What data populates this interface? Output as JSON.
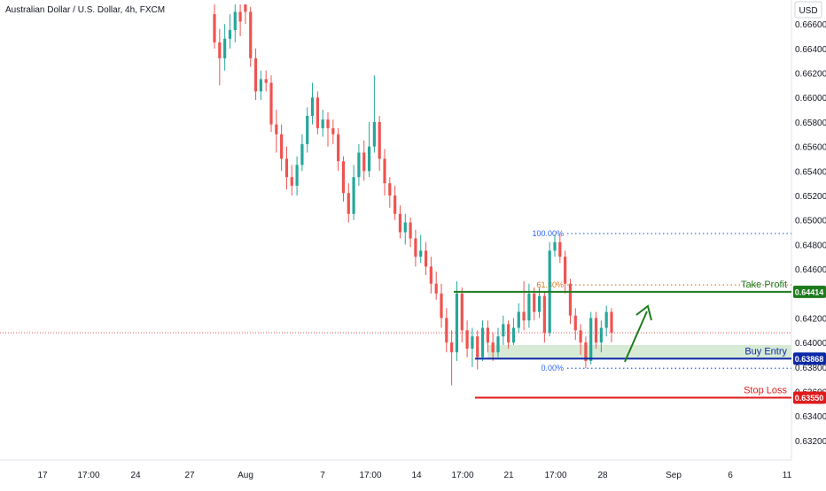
{
  "chart_data": {
    "type": "candlestick",
    "title": "Australian Dollar / U.S. Dollar, 4h, FXCM",
    "currency": "USD",
    "ylim": [
      0.6312,
      0.6676
    ],
    "y_ticks": [
      0.666,
      0.664,
      0.662,
      0.66,
      0.658,
      0.656,
      0.654,
      0.652,
      0.65,
      0.648,
      0.646,
      0.642,
      0.64,
      0.638,
      0.636,
      0.634,
      0.632
    ],
    "y_tick_labels": [
      "0.66600",
      "0.66400",
      "0.66200",
      "0.66000",
      "0.65800",
      "0.65600",
      "0.65400",
      "0.65200",
      "0.65000",
      "0.64800",
      "0.64600",
      "0.64200",
      "0.64000",
      "0.63800",
      "0.63600",
      "0.63400",
      "0.63200"
    ],
    "x_labels": [
      "17",
      "17:00",
      "24",
      "27",
      "Aug",
      "7",
      "17:00",
      "14",
      "17:00",
      "21",
      "17:00",
      "28",
      "Sep",
      "6",
      "11"
    ],
    "current_price": 0.6408,
    "levels": {
      "take_profit": {
        "label": "Take Profit",
        "price": 0.64414,
        "price_label": "0.64414",
        "color": "#1e7b1e"
      },
      "buy_entry": {
        "label": "Buy Entry",
        "price": 0.63868,
        "price_label": "0.63868",
        "color": "#0d2aa8"
      },
      "stop_loss": {
        "label": "Stop Loss",
        "price": 0.6355,
        "price_label": "0.63550",
        "color": "#e01b1b"
      }
    },
    "fibonacci": [
      {
        "label": "100.00%",
        "price": 0.6489,
        "color": "#2962ff"
      },
      {
        "label": "61.80%",
        "price": 0.6447,
        "color": "#e0761d"
      },
      {
        "label": "0.00%",
        "price": 0.6379,
        "color": "#2962ff"
      }
    ],
    "buy_zone": {
      "top": 0.6398,
      "bottom": 0.6387
    },
    "candles": [
      [
        0.6668,
        0.6645,
        0.6676,
        0.664
      ],
      [
        0.6645,
        0.6632,
        0.6656,
        0.661
      ],
      [
        0.6632,
        0.6648,
        0.666,
        0.6622
      ],
      [
        0.6648,
        0.6655,
        0.6668,
        0.664
      ],
      [
        0.6655,
        0.667,
        0.6676,
        0.6645
      ],
      [
        0.667,
        0.6662,
        0.6676,
        0.665
      ],
      [
        0.6676,
        0.667,
        0.6676,
        0.666
      ],
      [
        0.667,
        0.6632,
        0.6674,
        0.6625
      ],
      [
        0.6632,
        0.6605,
        0.664,
        0.6598
      ],
      [
        0.6605,
        0.6615,
        0.6622,
        0.6598
      ],
      [
        0.6615,
        0.6612,
        0.6622,
        0.6605
      ],
      [
        0.6612,
        0.6578,
        0.6618,
        0.6572
      ],
      [
        0.6578,
        0.657,
        0.659,
        0.6555
      ],
      [
        0.657,
        0.655,
        0.6578,
        0.654
      ],
      [
        0.655,
        0.6535,
        0.656,
        0.6525
      ],
      [
        0.6535,
        0.6528,
        0.6545,
        0.652
      ],
      [
        0.6528,
        0.6545,
        0.6552,
        0.652
      ],
      [
        0.6545,
        0.6562,
        0.657,
        0.654
      ],
      [
        0.6562,
        0.6585,
        0.6592,
        0.6555
      ],
      [
        0.6585,
        0.66,
        0.6612,
        0.6578
      ],
      [
        0.66,
        0.6575,
        0.6605,
        0.657
      ],
      [
        0.6575,
        0.6582,
        0.659,
        0.6568
      ],
      [
        0.6582,
        0.6575,
        0.6588,
        0.656
      ],
      [
        0.6575,
        0.657,
        0.6582,
        0.6562
      ],
      [
        0.657,
        0.6548,
        0.6575,
        0.654
      ],
      [
        0.6548,
        0.6522,
        0.6552,
        0.6515
      ],
      [
        0.6522,
        0.6505,
        0.653,
        0.6498
      ],
      [
        0.6505,
        0.6535,
        0.6545,
        0.65
      ],
      [
        0.6535,
        0.6555,
        0.6562,
        0.6528
      ],
      [
        0.6555,
        0.654,
        0.6565,
        0.6532
      ],
      [
        0.654,
        0.656,
        0.658,
        0.6535
      ],
      [
        0.656,
        0.658,
        0.6618,
        0.6555
      ],
      [
        0.658,
        0.655,
        0.6585,
        0.654
      ],
      [
        0.655,
        0.653,
        0.6558,
        0.652
      ],
      [
        0.653,
        0.652,
        0.6535,
        0.651
      ],
      [
        0.652,
        0.6505,
        0.6528,
        0.65
      ],
      [
        0.6505,
        0.649,
        0.6512,
        0.6485
      ],
      [
        0.649,
        0.6498,
        0.6505,
        0.648
      ],
      [
        0.6498,
        0.6485,
        0.6502,
        0.6478
      ],
      [
        0.6485,
        0.647,
        0.6492,
        0.6462
      ],
      [
        0.647,
        0.6475,
        0.6488,
        0.6465
      ],
      [
        0.6475,
        0.6462,
        0.6482,
        0.6455
      ],
      [
        0.6462,
        0.6448,
        0.647,
        0.644
      ],
      [
        0.6448,
        0.644,
        0.6458,
        0.6435
      ],
      [
        0.644,
        0.642,
        0.6448,
        0.6412
      ],
      [
        0.642,
        0.64,
        0.6428,
        0.6392
      ],
      [
        0.64,
        0.6392,
        0.641,
        0.6365
      ],
      [
        0.6392,
        0.644,
        0.645,
        0.6385
      ],
      [
        0.644,
        0.641,
        0.6445,
        0.64
      ],
      [
        0.641,
        0.6395,
        0.6418,
        0.6388
      ],
      [
        0.6395,
        0.6405,
        0.6412,
        0.638
      ],
      [
        0.6405,
        0.6388,
        0.641,
        0.6378
      ],
      [
        0.6388,
        0.6412,
        0.6418,
        0.6385
      ],
      [
        0.6412,
        0.64,
        0.6418,
        0.6392
      ],
      [
        0.64,
        0.6392,
        0.6408,
        0.6385
      ],
      [
        0.6392,
        0.6405,
        0.6412,
        0.6388
      ],
      [
        0.6405,
        0.6415,
        0.6422,
        0.6398
      ],
      [
        0.6415,
        0.64,
        0.6418,
        0.6395
      ],
      [
        0.64,
        0.6412,
        0.642,
        0.6398
      ],
      [
        0.6412,
        0.6425,
        0.6432,
        0.6408
      ],
      [
        0.6425,
        0.6418,
        0.645,
        0.641
      ],
      [
        0.6418,
        0.644,
        0.6448,
        0.6412
      ],
      [
        0.644,
        0.6425,
        0.6445,
        0.6418
      ],
      [
        0.6425,
        0.6438,
        0.6445,
        0.642
      ],
      [
        0.6438,
        0.6408,
        0.6442,
        0.64
      ],
      [
        0.6408,
        0.6475,
        0.6482,
        0.6405
      ],
      [
        0.6475,
        0.6482,
        0.6488,
        0.647
      ],
      [
        0.6482,
        0.647,
        0.6489,
        0.6465
      ],
      [
        0.647,
        0.6448,
        0.6475,
        0.644
      ],
      [
        0.6448,
        0.6422,
        0.6452,
        0.6415
      ],
      [
        0.6422,
        0.641,
        0.6428,
        0.6402
      ],
      [
        0.641,
        0.64,
        0.6415,
        0.639
      ],
      [
        0.64,
        0.6385,
        0.6405,
        0.6379
      ],
      [
        0.6385,
        0.642,
        0.6425,
        0.6382
      ],
      [
        0.642,
        0.64,
        0.6425,
        0.6395
      ],
      [
        0.64,
        0.6412,
        0.6418,
        0.6392
      ],
      [
        0.6412,
        0.6425,
        0.643,
        0.6405
      ],
      [
        0.6425,
        0.6408,
        0.6428,
        0.64
      ]
    ]
  },
  "colors": {
    "up": "#26a69a",
    "down": "#ef5350",
    "zone": "#d7ead5",
    "arrow": "#1e7b1e",
    "current_line": "#ef5350",
    "axis_text": "#131722"
  }
}
